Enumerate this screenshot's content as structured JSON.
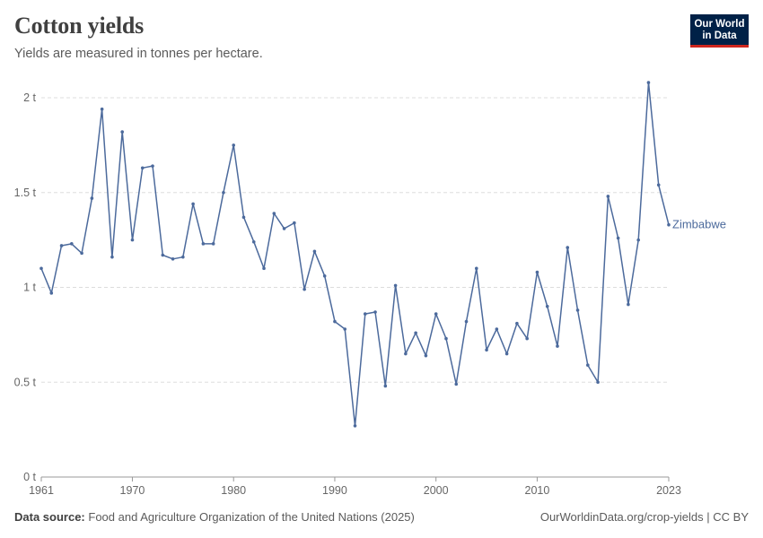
{
  "header": {
    "title": "Cotton yields",
    "subtitle": "Yields are measured in tonnes per hectare."
  },
  "logo": {
    "line1": "Our World",
    "line2": "in Data"
  },
  "footer": {
    "source_label": "Data source:",
    "source_text": "Food and Agriculture Organization of the United Nations (2025)",
    "link": "OurWorldinData.org/crop-yields | CC BY"
  },
  "colors": {
    "series": "#4c6a9c",
    "grid": "#dddddd",
    "logo_bg": "#002147",
    "logo_accent": "#ce261e"
  },
  "chart_data": {
    "type": "line",
    "title": "Cotton yields",
    "subtitle": "Yields are measured in tonnes per hectare.",
    "xlabel": "",
    "ylabel": "",
    "xlim": [
      1961,
      2023
    ],
    "ylim": [
      0,
      2
    ],
    "y_ticks": [
      {
        "value": 0,
        "label": "0 t"
      },
      {
        "value": 0.5,
        "label": "0.5 t"
      },
      {
        "value": 1,
        "label": "1 t"
      },
      {
        "value": 1.5,
        "label": "1.5 t"
      },
      {
        "value": 2,
        "label": "2 t"
      }
    ],
    "x_ticks": [
      {
        "value": 1961,
        "label": "1961"
      },
      {
        "value": 1970,
        "label": "1970"
      },
      {
        "value": 1980,
        "label": "1980"
      },
      {
        "value": 1990,
        "label": "1990"
      },
      {
        "value": 2000,
        "label": "2000"
      },
      {
        "value": 2010,
        "label": "2010"
      },
      {
        "value": 2023,
        "label": "2023"
      }
    ],
    "grid": true,
    "series": [
      {
        "name": "Zimbabwe",
        "x": [
          1961,
          1962,
          1963,
          1964,
          1965,
          1966,
          1967,
          1968,
          1969,
          1970,
          1971,
          1972,
          1973,
          1974,
          1975,
          1976,
          1977,
          1978,
          1979,
          1980,
          1981,
          1982,
          1983,
          1984,
          1985,
          1986,
          1987,
          1988,
          1989,
          1990,
          1991,
          1992,
          1993,
          1994,
          1995,
          1996,
          1997,
          1998,
          1999,
          2000,
          2001,
          2002,
          2003,
          2004,
          2005,
          2006,
          2007,
          2008,
          2009,
          2010,
          2011,
          2012,
          2013,
          2014,
          2015,
          2016,
          2017,
          2018,
          2019,
          2020,
          2021,
          2022,
          2023
        ],
        "y": [
          1.1,
          0.97,
          1.22,
          1.23,
          1.18,
          1.47,
          1.94,
          1.16,
          1.82,
          1.25,
          1.63,
          1.64,
          1.17,
          1.15,
          1.16,
          1.44,
          1.23,
          1.23,
          1.5,
          1.75,
          1.37,
          1.24,
          1.1,
          1.39,
          1.31,
          1.34,
          0.99,
          1.19,
          1.06,
          0.82,
          0.78,
          0.27,
          0.86,
          0.87,
          0.48,
          1.01,
          0.65,
          0.76,
          0.64,
          0.86,
          0.73,
          0.49,
          0.82,
          1.1,
          0.67,
          0.78,
          0.65,
          0.81,
          0.73,
          1.08,
          0.9,
          0.69,
          1.21,
          0.88,
          0.59,
          0.5,
          1.48,
          1.26,
          0.91,
          1.25,
          2.08,
          1.54,
          1.33
        ]
      }
    ]
  }
}
